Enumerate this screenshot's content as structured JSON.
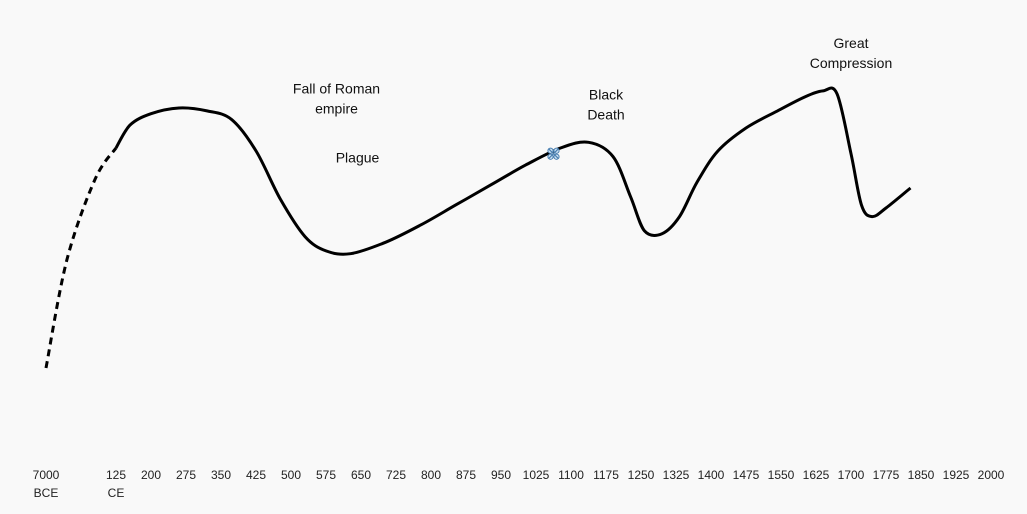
{
  "chart_data": {
    "type": "line",
    "title": "",
    "xlabel": "",
    "ylabel": "",
    "grid": false,
    "legend": "none",
    "line_color": "#000000",
    "x_ticks": [
      {
        "label": "7000",
        "sub": "BCE"
      },
      {
        "label": "125",
        "sub": "CE"
      },
      {
        "label": "200"
      },
      {
        "label": "275"
      },
      {
        "label": "350"
      },
      {
        "label": "425"
      },
      {
        "label": "500"
      },
      {
        "label": "575"
      },
      {
        "label": "650"
      },
      {
        "label": "725"
      },
      {
        "label": "800"
      },
      {
        "label": "875"
      },
      {
        "label": "950"
      },
      {
        "label": "1025"
      },
      {
        "label": "1100"
      },
      {
        "label": "1175"
      },
      {
        "label": "1250"
      },
      {
        "label": "1325"
      },
      {
        "label": "1400"
      },
      {
        "label": "1475"
      },
      {
        "label": "1550"
      },
      {
        "label": "1625"
      },
      {
        "label": "1700"
      },
      {
        "label": "1775"
      },
      {
        "label": "1850"
      },
      {
        "label": "1925"
      },
      {
        "label": "2000"
      }
    ],
    "ylim": [
      0,
      100
    ],
    "series": [
      {
        "style": "dashed",
        "points": [
          {
            "x": 0,
            "y": 0
          },
          {
            "x": 0.3,
            "y": 38
          },
          {
            "x": 0.7,
            "y": 66
          },
          {
            "x": 1.0,
            "y": 77
          }
        ]
      },
      {
        "style": "solid",
        "points": [
          {
            "x": 1.0,
            "y": 77
          },
          {
            "x": 1.4,
            "y": 85
          },
          {
            "x": 2.0,
            "y": 89
          },
          {
            "x": 2.8,
            "y": 91
          },
          {
            "x": 3.6,
            "y": 90
          },
          {
            "x": 4.3,
            "y": 87
          },
          {
            "x": 5.0,
            "y": 76
          },
          {
            "x": 5.7,
            "y": 59
          },
          {
            "x": 6.4,
            "y": 46
          },
          {
            "x": 7.0,
            "y": 41
          },
          {
            "x": 7.7,
            "y": 40
          },
          {
            "x": 8.7,
            "y": 44
          },
          {
            "x": 9.7,
            "y": 50
          },
          {
            "x": 10.7,
            "y": 57
          },
          {
            "x": 11.7,
            "y": 64
          },
          {
            "x": 12.7,
            "y": 71
          },
          {
            "x": 13.7,
            "y": 77
          },
          {
            "x": 14.5,
            "y": 79
          },
          {
            "x": 15.2,
            "y": 74
          },
          {
            "x": 15.7,
            "y": 60
          },
          {
            "x": 16.1,
            "y": 48
          },
          {
            "x": 16.6,
            "y": 47
          },
          {
            "x": 17.1,
            "y": 53
          },
          {
            "x": 17.6,
            "y": 65
          },
          {
            "x": 18.2,
            "y": 76
          },
          {
            "x": 19.0,
            "y": 84
          },
          {
            "x": 19.9,
            "y": 90
          },
          {
            "x": 20.7,
            "y": 95
          },
          {
            "x": 21.2,
            "y": 97
          },
          {
            "x": 21.6,
            "y": 96
          },
          {
            "x": 22.0,
            "y": 75
          },
          {
            "x": 22.3,
            "y": 57
          },
          {
            "x": 22.6,
            "y": 53
          },
          {
            "x": 23.0,
            "y": 56
          },
          {
            "x": 23.7,
            "y": 63
          }
        ]
      }
    ],
    "annotations": [
      {
        "lines": [
          "Fall of Roman",
          "empire"
        ],
        "x": 7.3,
        "y": 96
      },
      {
        "lines": [
          "Plague"
        ],
        "x": 7.9,
        "y": 72
      },
      {
        "lines": [
          "Black",
          "Death"
        ],
        "x": 15.0,
        "y": 94
      },
      {
        "lines": [
          "Great",
          "Compression"
        ],
        "x": 22.0,
        "y": 112
      }
    ],
    "marker": {
      "x": 13.5,
      "y": 75
    }
  }
}
